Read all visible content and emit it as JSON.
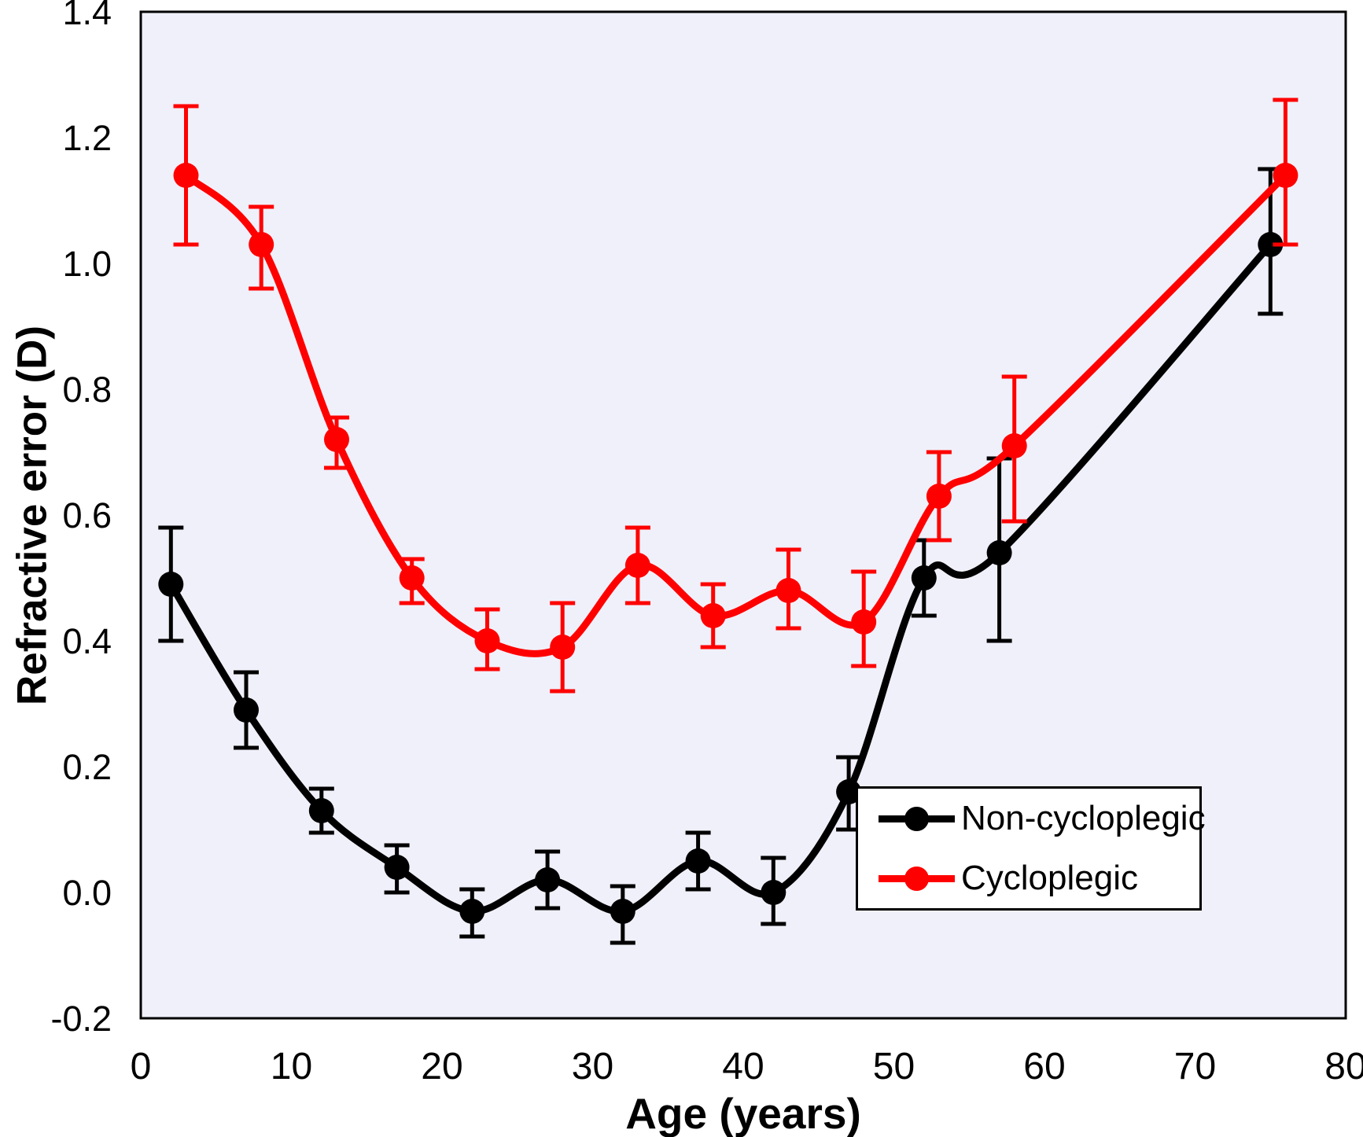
{
  "figure": {
    "kind": "line chart with error bars",
    "title": ""
  },
  "colors": {
    "plot_background": "#F0F0FA",
    "axis": "#000000",
    "series_non_cycloplegic": "#000000",
    "series_cycloplegic": "#FF0000",
    "legend_background": "#FFFFFF",
    "text": "#000000"
  },
  "chart_data": {
    "type": "line",
    "title": "",
    "xlabel": "Age (years)",
    "ylabel": "Refractive error (D)",
    "xlim": [
      0,
      80
    ],
    "ylim": [
      -0.2,
      1.4
    ],
    "x_ticks": [
      0,
      10,
      20,
      30,
      40,
      50,
      60,
      70,
      80
    ],
    "x_tick_labels": [
      "0",
      "10",
      "20",
      "30",
      "40",
      "50",
      "60",
      "70",
      "80"
    ],
    "y_ticks": [
      1.4,
      1.2,
      1.0,
      0.8,
      0.6,
      0.4,
      0.2,
      0.0,
      -0.2
    ],
    "y_tick_labels": [
      "1.4",
      "1.2",
      "1.0",
      "0.8",
      "0.6",
      "0.4",
      "0.2",
      "0.0",
      "-0.2"
    ],
    "grid": false,
    "legend_position": "bottom-right",
    "marker": "filled-circle",
    "line_style": "smooth",
    "series": [
      {
        "name": "Non-cycloplegic",
        "color": "#000000",
        "x": [
          2,
          7,
          12,
          17,
          22,
          27,
          32,
          37,
          42,
          47,
          52,
          57,
          75
        ],
        "y": [
          0.49,
          0.29,
          0.13,
          0.04,
          -0.03,
          0.02,
          -0.03,
          0.05,
          0.0,
          0.16,
          0.5,
          0.54,
          1.03
        ],
        "err_low": [
          0.4,
          0.23,
          0.095,
          0.0,
          -0.07,
          -0.025,
          -0.08,
          0.005,
          -0.05,
          0.1,
          0.44,
          0.4,
          0.92
        ],
        "err_high": [
          0.58,
          0.35,
          0.165,
          0.075,
          0.005,
          0.065,
          0.01,
          0.095,
          0.055,
          0.215,
          0.56,
          0.69,
          1.15
        ]
      },
      {
        "name": "Cycloplegic",
        "color": "#FF0000",
        "x": [
          3,
          8,
          13,
          18,
          23,
          28,
          33,
          38,
          43,
          48,
          53,
          58,
          76
        ],
        "y": [
          1.14,
          1.03,
          0.72,
          0.5,
          0.4,
          0.39,
          0.52,
          0.44,
          0.48,
          0.43,
          0.63,
          0.71,
          1.14
        ],
        "err_low": [
          1.03,
          0.96,
          0.675,
          0.46,
          0.355,
          0.32,
          0.46,
          0.39,
          0.42,
          0.36,
          0.56,
          0.59,
          1.03
        ],
        "err_high": [
          1.25,
          1.09,
          0.755,
          0.53,
          0.45,
          0.46,
          0.58,
          0.49,
          0.545,
          0.51,
          0.7,
          0.82,
          1.26
        ]
      }
    ]
  }
}
